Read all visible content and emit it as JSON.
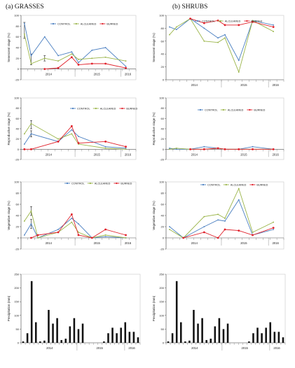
{
  "column_titles": {
    "left": "(a) GRASSES",
    "right": "(b) SHRUBS"
  },
  "legend_labels": [
    "CONTROL",
    "ALCLEARED",
    "BURNED"
  ],
  "colors": {
    "CONTROL": "#4a7fc1",
    "ALCLEARED": "#9bb54a",
    "BURNED": "#e0202a",
    "precip": "#111111"
  },
  "year_labels_top": [
    "2014",
    "2015",
    "2016"
  ],
  "year_labels_bottom": [
    "2014",
    "2015",
    "2016"
  ],
  "chart_data": [
    {
      "type": "line",
      "panel": "grasses-senescent",
      "ylabel": "Senescent stage (%)",
      "ylim": [
        -20,
        100
      ],
      "yticks": [
        -20,
        0,
        20,
        40,
        60,
        80,
        100
      ],
      "series": [
        {
          "name": "CONTROL",
          "x": [
            0,
            1,
            3,
            5,
            7,
            8,
            10,
            12,
            15
          ],
          "y": [
            85,
            25,
            60,
            25,
            32,
            12,
            35,
            40,
            5
          ]
        },
        {
          "name": "ALCLEARED",
          "x": [
            0,
            1,
            3,
            5,
            7,
            8,
            10,
            12,
            15
          ],
          "y": [
            65,
            10,
            20,
            15,
            28,
            18,
            20,
            22,
            15
          ]
        },
        {
          "name": "BURNED",
          "x": [
            3,
            5,
            7,
            8,
            10,
            12,
            15
          ],
          "y": [
            0,
            2,
            22,
            8,
            10,
            10,
            2
          ]
        }
      ],
      "error_bars": [
        {
          "x": 0,
          "y": 72,
          "err": 15
        },
        {
          "x": 1,
          "y": 18,
          "err": 10
        },
        {
          "x": 3,
          "y": 20,
          "err": 5
        }
      ]
    },
    {
      "type": "line",
      "panel": "grasses-reproductive",
      "ylabel": "Reproductive stage (%)",
      "ylim": [
        -20,
        100
      ],
      "yticks": [
        -20,
        0,
        20,
        40,
        60,
        80,
        100
      ],
      "series": [
        {
          "name": "CONTROL",
          "x": [
            0,
            1,
            5,
            7,
            8,
            12,
            15
          ],
          "y": [
            10,
            30,
            15,
            38,
            25,
            5,
            2
          ]
        },
        {
          "name": "ALCLEARED",
          "x": [
            0,
            1,
            5,
            7,
            8,
            12,
            15
          ],
          "y": [
            30,
            50,
            20,
            30,
            10,
            2,
            0
          ]
        },
        {
          "name": "BURNED",
          "x": [
            0,
            1,
            5,
            7,
            8,
            12,
            15
          ],
          "y": [
            0,
            0,
            15,
            45,
            12,
            15,
            5
          ]
        }
      ],
      "error_bars": [
        {
          "x": 1,
          "y": 48,
          "err": 8
        },
        {
          "x": 1,
          "y": 30,
          "err": 6
        }
      ]
    },
    {
      "type": "line",
      "panel": "grasses-vegetative",
      "ylabel": "Vegetative stage (%)",
      "ylim": [
        -20,
        100
      ],
      "yticks": [
        -20,
        0,
        20,
        40,
        60,
        80,
        100
      ],
      "series": [
        {
          "name": "CONTROL",
          "x": [
            0,
            1,
            2,
            5,
            7,
            8,
            10,
            12,
            15
          ],
          "y": [
            5,
            25,
            0,
            15,
            35,
            25,
            0,
            2,
            0
          ]
        },
        {
          "name": "ALCLEARED",
          "x": [
            0,
            1,
            2,
            5,
            7,
            8,
            10,
            12,
            15
          ],
          "y": [
            30,
            48,
            0,
            10,
            28,
            10,
            0,
            5,
            0
          ]
        },
        {
          "name": "BURNED",
          "x": [
            1,
            2,
            5,
            7,
            8,
            10,
            12,
            15
          ],
          "y": [
            0,
            5,
            10,
            42,
            5,
            0,
            15,
            5
          ]
        }
      ],
      "error_bars": [
        {
          "x": 1,
          "y": 48,
          "err": 8
        },
        {
          "x": 1,
          "y": 25,
          "err": 8
        }
      ]
    },
    {
      "type": "line",
      "panel": "shrubs-senescent",
      "ylabel": "Senescent stage (%)",
      "ylim": [
        0,
        100
      ],
      "yticks": [
        0,
        20,
        40,
        60,
        80,
        100
      ],
      "series": [
        {
          "name": "CONTROL",
          "x": [
            0,
            1,
            3,
            5,
            7,
            8,
            10,
            12,
            15
          ],
          "y": [
            82,
            78,
            95,
            80,
            65,
            70,
            30,
            92,
            85
          ]
        },
        {
          "name": "ALCLEARED",
          "x": [
            0,
            1,
            3,
            5,
            7,
            8,
            10,
            12,
            15
          ],
          "y": [
            70,
            82,
            95,
            60,
            58,
            65,
            12,
            92,
            75
          ]
        },
        {
          "name": "BURNED",
          "x": [
            3,
            5,
            7,
            8,
            10,
            12,
            15
          ],
          "y": [
            95,
            88,
            92,
            85,
            85,
            90,
            82
          ]
        }
      ]
    },
    {
      "type": "line",
      "panel": "shrubs-reproductive",
      "ylabel": "Reproductive stage (%)",
      "ylim": [
        -20,
        100
      ],
      "yticks": [
        -20,
        0,
        20,
        40,
        60,
        80,
        100
      ],
      "series": [
        {
          "name": "CONTROL",
          "x": [
            0,
            1,
            3,
            5,
            7,
            8,
            10,
            12,
            15
          ],
          "y": [
            2,
            0,
            0,
            5,
            2,
            0,
            0,
            5,
            0
          ]
        },
        {
          "name": "ALCLEARED",
          "x": [
            0,
            1,
            3,
            5,
            7,
            8,
            10,
            12,
            15
          ],
          "y": [
            0,
            2,
            0,
            0,
            2,
            0,
            0,
            0,
            0
          ]
        },
        {
          "name": "BURNED",
          "x": [
            3,
            5,
            7,
            8,
            10,
            12,
            15
          ],
          "y": [
            0,
            0,
            2,
            0,
            0,
            0,
            0
          ]
        }
      ]
    },
    {
      "type": "line",
      "panel": "shrubs-vegetative",
      "ylabel": "Vegetative stage (%)",
      "ylim": [
        -20,
        100
      ],
      "yticks": [
        -20,
        0,
        20,
        40,
        60,
        80,
        100
      ],
      "series": [
        {
          "name": "CONTROL",
          "x": [
            0,
            2,
            5,
            7,
            8,
            10,
            12,
            15
          ],
          "y": [
            20,
            0,
            20,
            32,
            30,
            68,
            5,
            15
          ]
        },
        {
          "name": "ALCLEARED",
          "x": [
            0,
            2,
            5,
            7,
            8,
            10,
            12,
            15
          ],
          "y": [
            15,
            0,
            38,
            42,
            35,
            88,
            10,
            28
          ]
        },
        {
          "name": "BURNED",
          "x": [
            2,
            5,
            7,
            8,
            10,
            12,
            15
          ],
          "y": [
            0,
            10,
            0,
            15,
            13,
            5,
            18
          ]
        }
      ]
    },
    {
      "type": "bar",
      "panel": "grasses-precipitation",
      "ylabel": "Precipitation (mm)",
      "ylim": [
        0,
        250
      ],
      "yticks": [
        0,
        50,
        100,
        150,
        200,
        250
      ],
      "values": [
        5,
        35,
        225,
        75,
        5,
        8,
        120,
        70,
        90,
        10,
        15,
        60,
        90,
        50,
        70,
        0,
        0,
        0,
        0,
        5,
        35,
        55,
        35,
        55,
        75,
        40,
        40,
        20
      ]
    },
    {
      "type": "bar",
      "panel": "shrubs-precipitation",
      "ylabel": "Precipitation (mm)",
      "ylim": [
        0,
        250
      ],
      "yticks": [
        0,
        50,
        100,
        150,
        200,
        250
      ],
      "values": [
        5,
        35,
        225,
        75,
        5,
        8,
        120,
        70,
        90,
        10,
        15,
        60,
        90,
        50,
        70,
        0,
        0,
        0,
        0,
        5,
        35,
        55,
        35,
        55,
        75,
        40,
        40,
        20
      ]
    }
  ]
}
